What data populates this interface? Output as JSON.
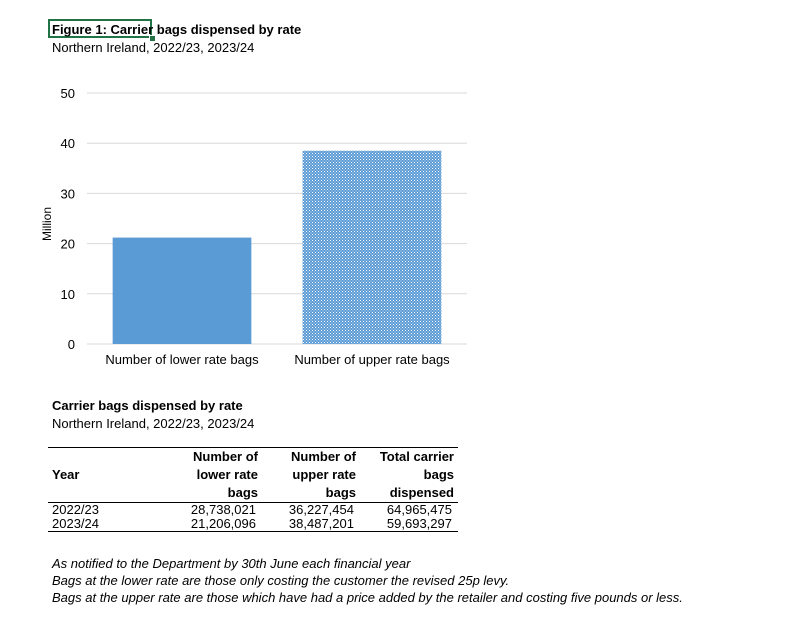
{
  "chart_data": {
    "type": "bar",
    "title": "Figure 1: Carrier bags dispensed by rate",
    "subtitle": "Northern Ireland, 2022/23, 2023/24",
    "categories": [
      "Number of lower rate bags",
      "Number of upper rate bags"
    ],
    "values": [
      21.2,
      38.5
    ],
    "ylabel": "Million",
    "xlabel": "",
    "ylim": [
      0,
      50
    ],
    "yticks": [
      "0",
      "10",
      "20",
      "30",
      "40",
      "50"
    ],
    "grid": true,
    "colors": [
      "#5b9bd5",
      "#5b9bd5"
    ]
  },
  "table": {
    "title": "Carrier bags dispensed by rate",
    "subtitle": "Northern Ireland, 2022/23, 2023/24",
    "headers": [
      "Year",
      "Number of lower rate bags",
      "Number of upper rate bags",
      "Total carrier bags dispensed"
    ],
    "rows": [
      [
        "2022/23",
        "28,738,021",
        "36,227,454",
        "64,965,475"
      ],
      [
        "2023/24",
        "21,206,096",
        "38,487,201",
        "59,693,297"
      ]
    ]
  },
  "notes": [
    "As notified to the Department by 30th June each financial year",
    "Bags at the lower rate are those only costing the customer the revised 25p levy.",
    "Bags at the upper rate are those which have had a price added by the retailer and costing five pounds or less."
  ]
}
